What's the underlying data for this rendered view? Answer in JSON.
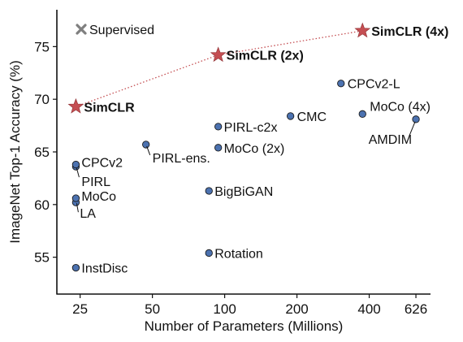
{
  "chart_data": {
    "type": "scatter",
    "title": "",
    "xlabel": "Number of Parameters (Millions)",
    "ylabel": "ImageNet Top-1 Accuracy (%)",
    "x_scale": "log",
    "xlim": [
      20,
      720
    ],
    "ylim": [
      51.5,
      78.5
    ],
    "x_ticks": [
      25,
      50,
      100,
      200,
      400,
      626
    ],
    "y_ticks": [
      55,
      60,
      65,
      70,
      75
    ],
    "grid": false,
    "legend": {
      "position": "top-left",
      "entries": [
        {
          "label": "Supervised",
          "marker": "x",
          "color": "#7f7f7f"
        }
      ]
    },
    "series": [
      {
        "name": "",
        "marker": "circle",
        "color": "#4c72b0",
        "points": [
          {
            "label": "InstDisc",
            "x": 24,
            "y": 54.0
          },
          {
            "label": "Rotation",
            "x": 86,
            "y": 55.4
          },
          {
            "label": "BigBiGAN",
            "x": 86,
            "y": 61.3
          },
          {
            "label": "LA",
            "x": 24,
            "y": 60.2
          },
          {
            "label": "MoCo",
            "x": 24,
            "y": 60.6
          },
          {
            "label": "MoCo (2x)",
            "x": 94,
            "y": 65.4
          },
          {
            "label": "MoCo (4x)",
            "x": 375,
            "y": 68.6
          },
          {
            "label": "PIRL",
            "x": 24,
            "y": 63.6
          },
          {
            "label": "PIRL-ens.",
            "x": 47,
            "y": 65.7
          },
          {
            "label": "PIRL-c2x",
            "x": 94,
            "y": 67.4
          },
          {
            "label": "CPCv2",
            "x": 24,
            "y": 63.8
          },
          {
            "label": "CPCv2-L",
            "x": 305,
            "y": 71.5
          },
          {
            "label": "CMC",
            "x": 188,
            "y": 68.4
          },
          {
            "label": "AMDIM",
            "x": 626,
            "y": 68.1
          }
        ]
      },
      {
        "name": "",
        "marker": "star",
        "color": "#c44e52",
        "connected": true,
        "points": [
          {
            "label": "SimCLR",
            "x": 24,
            "y": 69.3
          },
          {
            "label": "SimCLR (2x)",
            "x": 94,
            "y": 74.2
          },
          {
            "label": "SimCLR (4x)",
            "x": 375,
            "y": 76.5
          }
        ]
      }
    ]
  }
}
